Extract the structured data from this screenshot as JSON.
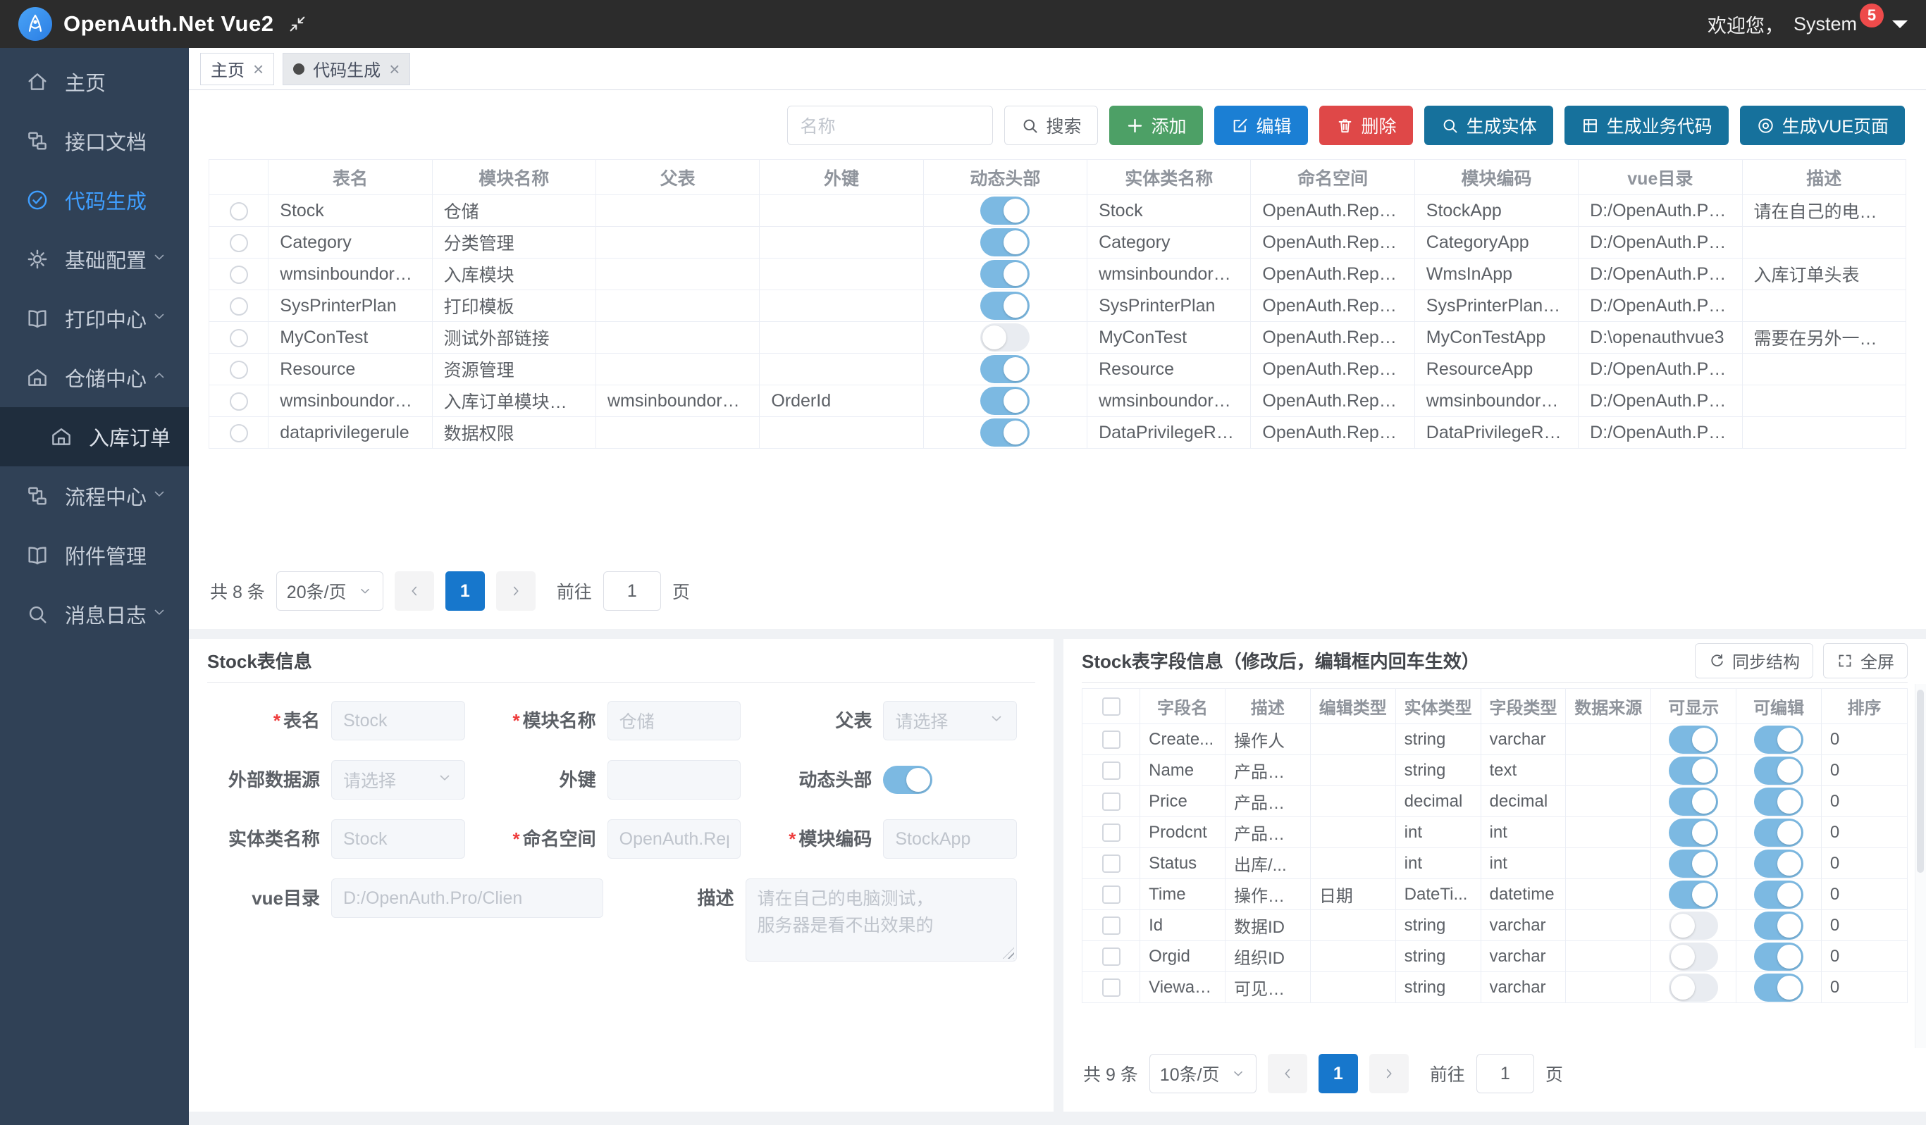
{
  "header": {
    "app_title": "OpenAuth.Net Vue2",
    "welcome": "欢迎您，",
    "username": "System",
    "badge": "5"
  },
  "tags": [
    {
      "label": "主页",
      "active": false
    },
    {
      "label": "代码生成",
      "active": true
    }
  ],
  "sidebar": [
    {
      "label": "主页",
      "icon": "home"
    },
    {
      "label": "接口文档",
      "icon": "api"
    },
    {
      "label": "代码生成",
      "icon": "check-circle",
      "active": true
    },
    {
      "label": "基础配置",
      "icon": "gear",
      "arrow": "down"
    },
    {
      "label": "打印中心",
      "icon": "book",
      "arrow": "down"
    },
    {
      "label": "仓储中心",
      "icon": "warehouse",
      "arrow": "up",
      "children": [
        {
          "label": "入库订单",
          "icon": "warehouse"
        }
      ]
    },
    {
      "label": "流程中心",
      "icon": "flow",
      "arrow": "down"
    },
    {
      "label": "附件管理",
      "icon": "book"
    },
    {
      "label": "消息日志",
      "icon": "search",
      "arrow": "down"
    }
  ],
  "toolbar": {
    "search_placeholder": "名称",
    "search_button": "搜索",
    "buttons": [
      {
        "label": "添加",
        "icon": "plus",
        "color": "#4da066",
        "name": "add-button"
      },
      {
        "label": "编辑",
        "icon": "edit",
        "color": "#1b7fd4",
        "name": "edit-button"
      },
      {
        "label": "删除",
        "icon": "trash",
        "color": "#df4848",
        "name": "delete-button"
      },
      {
        "label": "生成实体",
        "icon": "magnifier",
        "color": "#16719c",
        "name": "generate-entity-button"
      },
      {
        "label": "生成业务代码",
        "icon": "grid",
        "color": "#16719c",
        "name": "generate-business-code-button"
      },
      {
        "label": "生成VUE页面",
        "icon": "target",
        "color": "#16719c",
        "name": "generate-vue-page-button"
      }
    ]
  },
  "table": {
    "columns": [
      "表名",
      "模块名称",
      "父表",
      "外键",
      "动态头部",
      "实体类名称",
      "命名空间",
      "模块编码",
      "vue目录",
      "描述"
    ],
    "rows": [
      {
        "name": "Stock",
        "module": "仓储",
        "parent": "",
        "fk": "",
        "switch": true,
        "entity": "Stock",
        "namespace": "OpenAuth.Reposit...",
        "code": "StockApp",
        "vuedir": "D:/OpenAuth.Pro/...",
        "desc": "请在自己的电脑测..."
      },
      {
        "name": "Category",
        "module": "分类管理",
        "parent": "",
        "fk": "",
        "switch": true,
        "entity": "Category",
        "namespace": "OpenAuth.Reposit...",
        "code": "CategoryApp",
        "vuedir": "D:/OpenAuth.Pro/...",
        "desc": ""
      },
      {
        "name": "wmsinboundordertbl",
        "module": "入库模块",
        "parent": "",
        "fk": "",
        "switch": true,
        "entity": "wmsinboundordertbl",
        "namespace": "OpenAuth.Reposit...",
        "code": "WmsInApp",
        "vuedir": "D:/OpenAuth.Pro/...",
        "desc": "入库订单头表"
      },
      {
        "name": "SysPrinterPlan",
        "module": "打印模板",
        "parent": "",
        "fk": "",
        "switch": true,
        "entity": "SysPrinterPlan",
        "namespace": "OpenAuth.Reposit...",
        "code": "SysPrinterPlanApp",
        "vuedir": "D:/OpenAuth.Pro/...",
        "desc": ""
      },
      {
        "name": "MyConTest",
        "module": "测试外部链接",
        "parent": "",
        "fk": "",
        "switch": false,
        "entity": "MyConTest",
        "namespace": "OpenAuth.Reposit...",
        "code": "MyConTestApp",
        "vuedir": "D:\\openauthvue3",
        "desc": "需要在另外一个数..."
      },
      {
        "name": "Resource",
        "module": "资源管理",
        "parent": "",
        "fk": "",
        "switch": true,
        "entity": "Resource",
        "namespace": "OpenAuth.Reposit...",
        "code": "ResourceApp",
        "vuedir": "D:/OpenAuth.Pro/...",
        "desc": ""
      },
      {
        "name": "wmsinboundorderdtbl",
        "module": "入库订单模块子表",
        "parent": "wmsinboundordertbl",
        "fk": "OrderId",
        "switch": true,
        "entity": "wmsinboundorder...",
        "namespace": "OpenAuth.Reposit...",
        "code": "wmsinboundorder...",
        "vuedir": "D:/OpenAuth.Pro/...",
        "desc": ""
      },
      {
        "name": "dataprivilegerule",
        "module": "数据权限",
        "parent": "",
        "fk": "",
        "switch": true,
        "entity": "DataPrivilegeRule",
        "namespace": "OpenAuth.Reposit...",
        "code": "DataPrivilegeRule...",
        "vuedir": "D:/OpenAuth.Pro/...",
        "desc": ""
      }
    ]
  },
  "pagination": {
    "total": "共 8 条",
    "size": "20条/页",
    "page": "1",
    "goto_label": "前往",
    "goto_value": "1",
    "unit": "页"
  },
  "form": {
    "title": "Stock表信息",
    "rows": [
      [
        {
          "label": "表名",
          "required": true,
          "type": "input",
          "value": "Stock"
        },
        {
          "label": "模块名称",
          "required": true,
          "type": "input",
          "value": "仓储"
        },
        {
          "label": "父表",
          "type": "select",
          "value": "请选择"
        }
      ],
      [
        {
          "label": "外部数据源",
          "type": "select",
          "value": "请选择"
        },
        {
          "label": "外键",
          "type": "input",
          "value": ""
        },
        {
          "label": "动态头部",
          "type": "switch",
          "on": true
        }
      ],
      [
        {
          "label": "实体类名称",
          "type": "input",
          "value": "Stock"
        },
        {
          "label": "命名空间",
          "required": true,
          "type": "input",
          "value": "OpenAuth.Repository.D"
        },
        {
          "label": "模块编码",
          "required": true,
          "type": "input",
          "value": "StockApp"
        }
      ],
      [
        {
          "label": "vue目录",
          "type": "input",
          "value": "D:/OpenAuth.Pro/Clien"
        },
        {
          "label": "描述",
          "type": "textarea",
          "value": "请在自己的电脑测试，\n服务器是看不出效果的"
        }
      ]
    ]
  },
  "fields": {
    "title": "Stock表字段信息（修改后，编辑框内回车生效）",
    "sync_button": "同步结构",
    "fullscreen_button": "全屏",
    "columns": [
      "字段名",
      "描述",
      "编辑类型",
      "实体类型",
      "字段类型",
      "数据来源",
      "可显示",
      "可编辑",
      "排序"
    ],
    "rows": [
      {
        "name": "Create...",
        "desc": "操作人",
        "edit_type": "",
        "entity_type": "string",
        "field_type": "varchar",
        "source": "",
        "visible": true,
        "editable": true,
        "sort": "0"
      },
      {
        "name": "Name",
        "desc": "产品名称",
        "edit_type": "",
        "entity_type": "string",
        "field_type": "text",
        "source": "",
        "visible": true,
        "editable": true,
        "sort": "0"
      },
      {
        "name": "Price",
        "desc": "产品单价",
        "edit_type": "",
        "entity_type": "decimal",
        "field_type": "decimal",
        "source": "",
        "visible": true,
        "editable": true,
        "sort": "0"
      },
      {
        "name": "Prodcnt",
        "desc": "产品数量",
        "edit_type": "",
        "entity_type": "int",
        "field_type": "int",
        "source": "",
        "visible": true,
        "editable": true,
        "sort": "0"
      },
      {
        "name": "Status",
        "desc": "出库/...",
        "edit_type": "",
        "entity_type": "int",
        "field_type": "int",
        "source": "",
        "visible": true,
        "editable": true,
        "sort": "0"
      },
      {
        "name": "Time",
        "desc": "操作时间",
        "edit_type": "日期",
        "entity_type": "DateTi...",
        "field_type": "datetime",
        "source": "",
        "visible": true,
        "editable": true,
        "sort": "0"
      },
      {
        "name": "Id",
        "desc": "数据ID",
        "edit_type": "",
        "entity_type": "string",
        "field_type": "varchar",
        "source": "",
        "visible": false,
        "editable": true,
        "sort": "0"
      },
      {
        "name": "Orgid",
        "desc": "组织ID",
        "edit_type": "",
        "entity_type": "string",
        "field_type": "varchar",
        "source": "",
        "visible": false,
        "editable": true,
        "sort": "0"
      },
      {
        "name": "Viewable",
        "desc": "可见范围",
        "edit_type": "",
        "entity_type": "string",
        "field_type": "varchar",
        "source": "",
        "visible": false,
        "editable": true,
        "sort": "0"
      }
    ],
    "pagination": {
      "total": "共 9 条",
      "size": "10条/页",
      "page": "1",
      "goto_label": "前往",
      "goto_value": "1",
      "unit": "页"
    }
  },
  "colors": {
    "accent_blue": "#1777cc",
    "switch_on": "#7cb9e2",
    "sidebar_bg": "#304156",
    "submenu_bg": "#1f2d3d",
    "header_bg": "#2c2c2c"
  }
}
